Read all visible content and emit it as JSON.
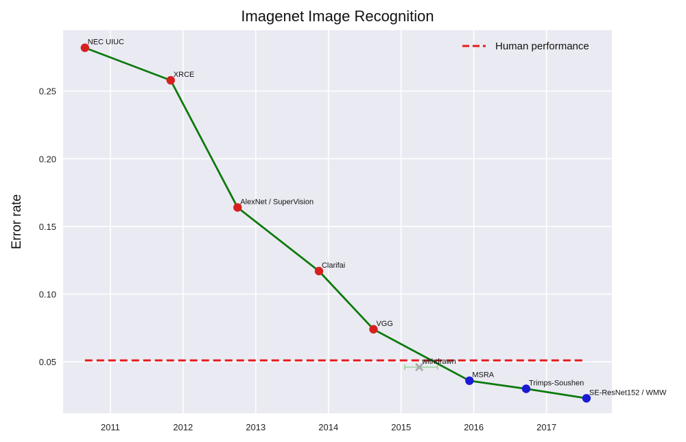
{
  "chart_data": {
    "type": "line",
    "title": "Imagenet Image Recognition",
    "xlabel": "",
    "ylabel": "Error rate",
    "xlim": [
      2010.35,
      2017.9
    ],
    "ylim": [
      0.012,
      0.295
    ],
    "x_ticks": [
      2011,
      2012,
      2013,
      2014,
      2015,
      2016,
      2017
    ],
    "x_tick_labels": [
      "2011",
      "2012",
      "2013",
      "2014",
      "2015",
      "2016",
      "2017"
    ],
    "y_ticks": [
      0.05,
      0.1,
      0.15,
      0.2,
      0.25
    ],
    "y_tick_labels": [
      "0.05",
      "0.10",
      "0.15",
      "0.20",
      "0.25"
    ],
    "grid": true,
    "legend": {
      "placement": "top-right",
      "entries": [
        {
          "label": "Human performance",
          "style": "dashed",
          "color": "#e41a1c"
        }
      ]
    },
    "series": [
      {
        "color": "#0a7a0a",
        "points": [
          {
            "x": 2010.65,
            "y": 0.282,
            "label": "NEC UIUC",
            "marker_color": "#d62020"
          },
          {
            "x": 2011.83,
            "y": 0.258,
            "label": "XRCE",
            "marker_color": "#d62020"
          },
          {
            "x": 2012.75,
            "y": 0.164,
            "label": "AlexNet / SuperVision",
            "marker_color": "#d62020"
          },
          {
            "x": 2013.87,
            "y": 0.117,
            "label": "Clarifai",
            "marker_color": "#d62020"
          },
          {
            "x": 2014.62,
            "y": 0.074,
            "label": "VGG",
            "marker_color": "#d62020"
          },
          {
            "x": 2015.94,
            "y": 0.036,
            "label": "MSRA",
            "marker_color": "#1a1ad6"
          },
          {
            "x": 2016.72,
            "y": 0.03,
            "label": "Trimps-Soushen",
            "marker_color": "#1a1ad6"
          },
          {
            "x": 2017.55,
            "y": 0.023,
            "label": "SE-ResNet152 / WMW",
            "marker_color": "#1a1ad6"
          }
        ]
      },
      {
        "name": "Human performance",
        "style": "dashed",
        "color": "#e41a1c",
        "x": [
          2010.65,
          2017.55
        ],
        "y": [
          0.051,
          0.051
        ]
      }
    ],
    "annotations": [
      {
        "x": 2015.25,
        "y": 0.046,
        "label": "withdrawn",
        "marker": "x",
        "color": "#aaaaaa",
        "xerr": [
          2015.05,
          2015.5
        ],
        "xerr_color": "#8fd18f"
      }
    ]
  },
  "colors": {
    "plot_background": "#eaeaf2",
    "grid": "#ffffff",
    "page_background": "#ffffff"
  }
}
